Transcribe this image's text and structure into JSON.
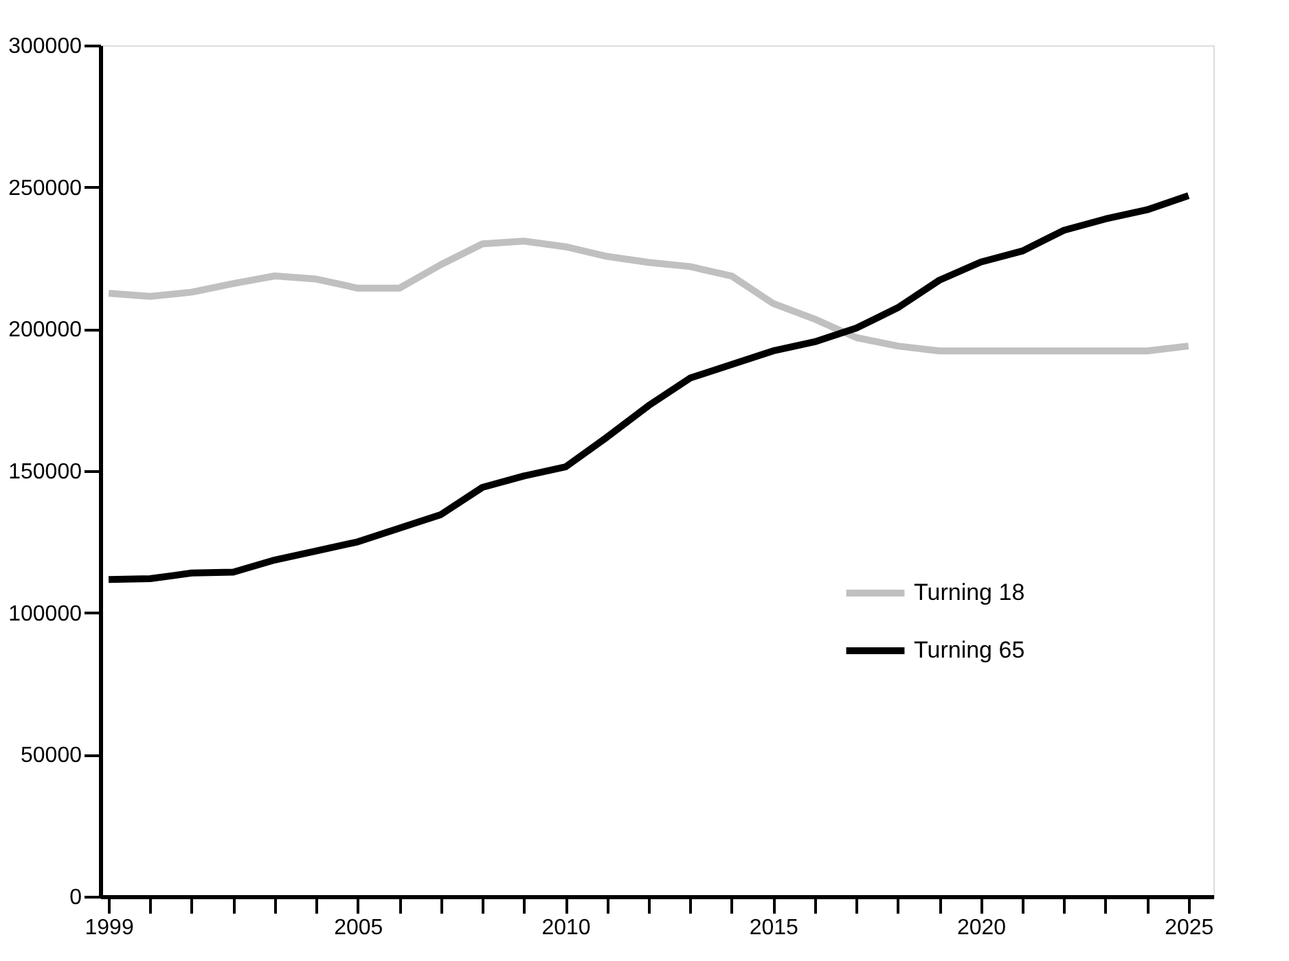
{
  "chart_data": {
    "type": "line",
    "x": [
      1999,
      2000,
      2001,
      2002,
      2003,
      2004,
      2005,
      2006,
      2007,
      2008,
      2009,
      2010,
      2011,
      2012,
      2013,
      2014,
      2015,
      2016,
      2017,
      2018,
      2019,
      2020,
      2021,
      2022,
      2023,
      2024,
      2025
    ],
    "series": [
      {
        "name": "Turning 18",
        "color": "#c0c0c0",
        "values": [
          212600,
          211500,
          213000,
          216000,
          218700,
          217600,
          214400,
          214400,
          222700,
          230000,
          231000,
          229000,
          225600,
          223500,
          222000,
          218700,
          209000,
          203500,
          197000,
          194000,
          192300,
          192300,
          192300,
          192300,
          192300,
          192300,
          194000
        ]
      },
      {
        "name": "Turning 65",
        "color": "#000000",
        "values": [
          111700,
          112000,
          114000,
          114300,
          118600,
          121800,
          125000,
          129800,
          134600,
          144200,
          148200,
          151400,
          161900,
          173000,
          182700,
          187500,
          192300,
          195500,
          200300,
          207500,
          217200,
          223600,
          227500,
          234800,
          238800,
          242000,
          247000
        ]
      }
    ],
    "xlim": [
      1998.8,
      2025.6
    ],
    "xticks": [
      1999,
      {
        "value": 2000,
        "label": null
      },
      {
        "value": 2001,
        "label": null
      },
      {
        "value": 2002,
        "label": null
      },
      {
        "value": 2003,
        "label": null
      },
      {
        "value": 2004,
        "label": null
      },
      2005,
      {
        "value": 2006,
        "label": null
      },
      {
        "value": 2007,
        "label": null
      },
      {
        "value": 2008,
        "label": null
      },
      {
        "value": 2009,
        "label": null
      },
      2010,
      {
        "value": 2011,
        "label": null
      },
      {
        "value": 2012,
        "label": null
      },
      {
        "value": 2013,
        "label": null
      },
      {
        "value": 2014,
        "label": null
      },
      2015,
      {
        "value": 2016,
        "label": null
      },
      {
        "value": 2017,
        "label": null
      },
      {
        "value": 2018,
        "label": null
      },
      {
        "value": 2019,
        "label": null
      },
      2020,
      {
        "value": 2021,
        "label": null
      },
      {
        "value": 2022,
        "label": null
      },
      {
        "value": 2023,
        "label": null
      },
      {
        "value": 2024,
        "label": null
      },
      2025
    ],
    "ylim": [
      0,
      300000
    ],
    "yticks": [
      0,
      50000,
      100000,
      150000,
      200000,
      250000,
      300000
    ],
    "grid": false,
    "legend": "right",
    "marker": "none",
    "line_style": "solid"
  }
}
